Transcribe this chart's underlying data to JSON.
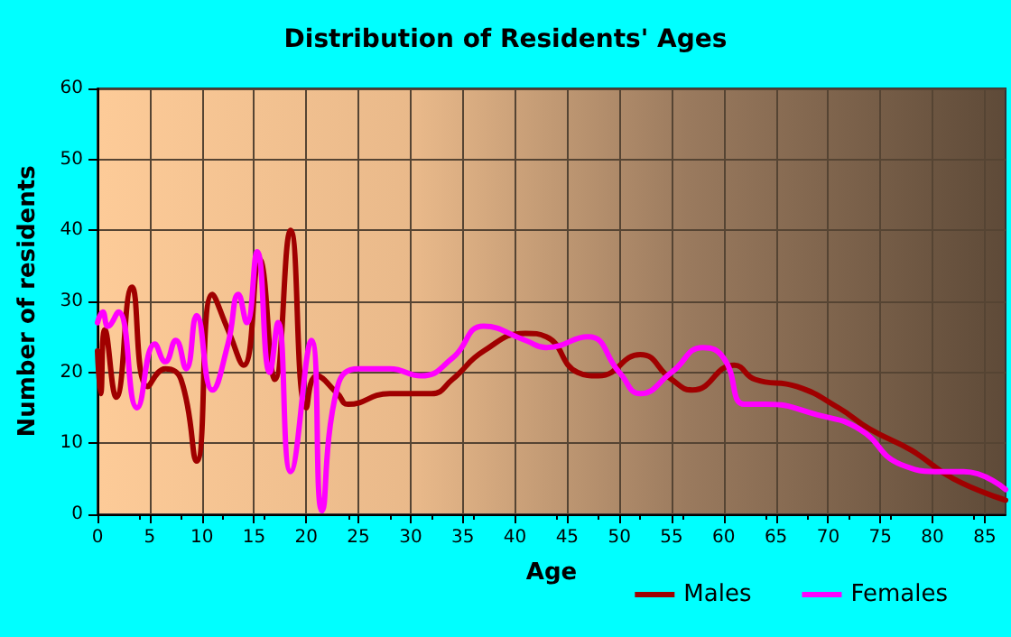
{
  "chart_data": {
    "type": "line",
    "title": "Distribution of Residents' Ages",
    "xlabel": "Age",
    "ylabel": "Number of residents",
    "xlim": [
      0,
      87
    ],
    "xticks": [
      0,
      5,
      10,
      15,
      20,
      25,
      30,
      35,
      40,
      45,
      50,
      55,
      60,
      65,
      70,
      75,
      80,
      85
    ],
    "ylim": [
      0,
      60
    ],
    "yticks": [
      0,
      10,
      20,
      30,
      40,
      50,
      60
    ],
    "grid": true,
    "legend": "bottom right",
    "marker": "none",
    "line_style": "solid",
    "series": [
      {
        "name": "Males",
        "color": "#a00000",
        "x": [
          0,
          0.3,
          0.7,
          1.8,
          3.3,
          4.8,
          6.5,
          8,
          9.5,
          11,
          12.5,
          14,
          15.5,
          17,
          18.5,
          20,
          21,
          23,
          24,
          28,
          32,
          34,
          37,
          41,
          43,
          46,
          48,
          52,
          55,
          57,
          61,
          63,
          67,
          71,
          74,
          78,
          82,
          87
        ],
        "values": [
          23,
          17,
          26,
          16.5,
          32,
          18,
          20.5,
          19,
          7.5,
          31,
          26,
          21,
          36,
          19,
          40,
          15,
          19.5,
          17,
          15.5,
          17,
          17,
          19,
          23,
          25.5,
          25,
          20,
          19.5,
          22.5,
          19,
          17.5,
          21,
          19,
          18,
          15,
          12,
          9,
          5,
          2
        ]
      },
      {
        "name": "Females",
        "color": "#ff00ff",
        "x": [
          0,
          0.5,
          1,
          2,
          3.8,
          5.5,
          6.5,
          7.5,
          8.5,
          9.5,
          11,
          12.5,
          13.5,
          14.3,
          15.3,
          16.5,
          17.3,
          18.5,
          20.5,
          21.5,
          23,
          25,
          28,
          31,
          34,
          37,
          41,
          43,
          47,
          50,
          52,
          55,
          58,
          60,
          62,
          64,
          69,
          73,
          77,
          81,
          83,
          87
        ],
        "values": [
          27,
          28.5,
          26.5,
          28.5,
          15,
          24,
          21.5,
          24.5,
          20.5,
          28,
          17.5,
          24,
          31,
          27,
          37,
          20,
          27,
          6,
          24.5,
          0.5,
          18,
          20.5,
          20.5,
          19.5,
          22,
          26.5,
          24.5,
          23.5,
          25,
          20,
          17,
          20,
          23.5,
          22,
          15.5,
          15.5,
          14,
          12,
          7,
          6,
          6,
          3.5
        ]
      }
    ]
  }
}
